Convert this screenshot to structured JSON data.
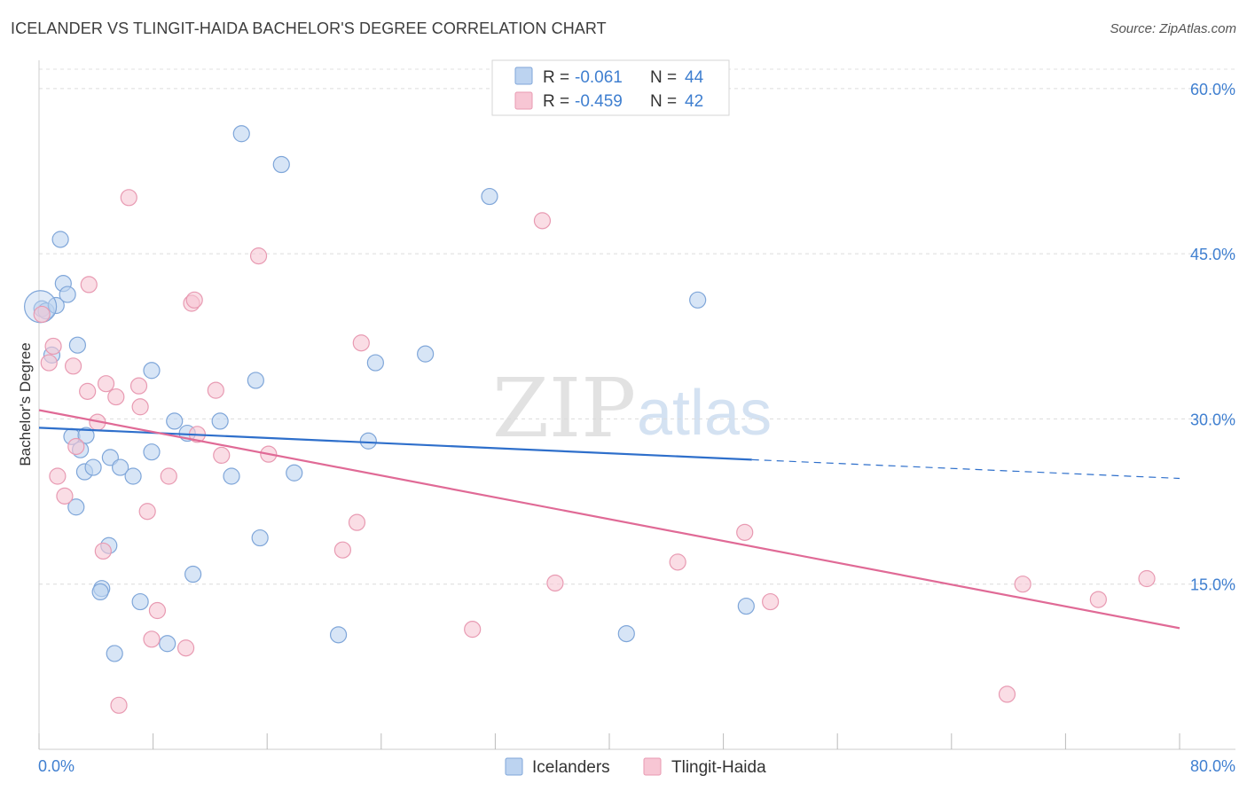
{
  "header": {
    "title": "ICELANDER VS TLINGIT-HAIDA BACHELOR'S DEGREE CORRELATION CHART",
    "source": "Source: ZipAtlas.com"
  },
  "watermark": {
    "part1": "ZIP",
    "part2": "atlas"
  },
  "legend_top": {
    "rows": [
      {
        "r_label": "R =",
        "r_value": "-0.061",
        "n_label": "N =",
        "n_value": "44"
      },
      {
        "r_label": "R =",
        "r_value": "-0.459",
        "n_label": "N =",
        "n_value": "42"
      }
    ]
  },
  "colors": {
    "icelanders_fill": "#bcd3f0",
    "icelanders_stroke": "#7fa6d9",
    "icelanders_line": "#2e6fcb",
    "tlingit_fill": "#f7c6d4",
    "tlingit_stroke": "#e89ab2",
    "tlingit_line": "#e06a96",
    "value_blue": "#3f7fd0"
  },
  "chart_data": {
    "type": "scatter",
    "title": "ICELANDER VS TLINGIT-HAIDA BACHELOR'S DEGREE CORRELATION CHART",
    "xlabel": "",
    "ylabel": "Bachelor's Degree",
    "xlim": [
      0,
      80
    ],
    "ylim": [
      0,
      62
    ],
    "x_tick_labels": [
      "0.0%",
      "80.0%"
    ],
    "y_ticks": [
      15,
      30,
      45,
      60
    ],
    "y_tick_labels": [
      "15.0%",
      "30.0%",
      "45.0%",
      "60.0%"
    ],
    "grid": true,
    "legend_position": "bottom",
    "series": [
      {
        "name": "Icelanders",
        "r": -0.061,
        "n": 44,
        "trend": {
          "x_start": 0,
          "y_start": 29.2,
          "x_solid_end": 50,
          "y_solid_end": 26.3,
          "x_end": 80,
          "y_end": 24.6
        },
        "points": [
          [
            0.2,
            40.0
          ],
          [
            0.5,
            39.8
          ],
          [
            1.2,
            40.3
          ],
          [
            0.9,
            35.8
          ],
          [
            1.5,
            46.3
          ],
          [
            1.7,
            42.3
          ],
          [
            2.0,
            41.3
          ],
          [
            2.7,
            36.7
          ],
          [
            2.3,
            28.4
          ],
          [
            2.9,
            27.2
          ],
          [
            3.3,
            28.5
          ],
          [
            3.2,
            25.2
          ],
          [
            3.8,
            25.6
          ],
          [
            2.6,
            22.0
          ],
          [
            5.0,
            26.5
          ],
          [
            5.7,
            25.6
          ],
          [
            6.6,
            24.8
          ],
          [
            7.9,
            34.4
          ],
          [
            7.9,
            27.0
          ],
          [
            9.5,
            29.8
          ],
          [
            10.4,
            28.7
          ],
          [
            12.7,
            29.8
          ],
          [
            13.5,
            24.8
          ],
          [
            14.2,
            55.9
          ],
          [
            15.2,
            33.5
          ],
          [
            15.5,
            19.2
          ],
          [
            17.0,
            53.1
          ],
          [
            17.9,
            25.1
          ],
          [
            4.9,
            18.5
          ],
          [
            4.4,
            14.6
          ],
          [
            4.3,
            14.3
          ],
          [
            7.1,
            13.4
          ],
          [
            10.8,
            15.9
          ],
          [
            9.0,
            9.6
          ],
          [
            5.3,
            8.7
          ],
          [
            21.0,
            10.4
          ],
          [
            23.1,
            28.0
          ],
          [
            23.6,
            35.1
          ],
          [
            27.1,
            35.9
          ],
          [
            31.6,
            50.2
          ],
          [
            46.2,
            40.8
          ],
          [
            41.2,
            10.5
          ],
          [
            49.6,
            13.0
          ],
          [
            0.1,
            40.2
          ]
        ]
      },
      {
        "name": "Tlingit-Haida",
        "r": -0.459,
        "n": 42,
        "trend": {
          "x_start": 0,
          "y_start": 30.8,
          "x_solid_end": 80,
          "y_solid_end": 11.0,
          "x_end": 80,
          "y_end": 11.0
        },
        "points": [
          [
            0.2,
            39.5
          ],
          [
            0.7,
            35.1
          ],
          [
            1.0,
            36.6
          ],
          [
            1.3,
            24.8
          ],
          [
            1.8,
            23.0
          ],
          [
            2.4,
            34.8
          ],
          [
            2.6,
            27.5
          ],
          [
            3.5,
            42.2
          ],
          [
            3.4,
            32.5
          ],
          [
            4.1,
            29.7
          ],
          [
            4.5,
            18.0
          ],
          [
            4.7,
            33.2
          ],
          [
            5.4,
            32.0
          ],
          [
            5.6,
            4.0
          ],
          [
            6.3,
            50.1
          ],
          [
            7.0,
            33.0
          ],
          [
            7.1,
            31.1
          ],
          [
            7.6,
            21.6
          ],
          [
            7.9,
            10.0
          ],
          [
            8.3,
            12.6
          ],
          [
            9.1,
            24.8
          ],
          [
            10.3,
            9.2
          ],
          [
            10.7,
            40.5
          ],
          [
            10.9,
            40.8
          ],
          [
            11.1,
            28.6
          ],
          [
            12.4,
            32.6
          ],
          [
            12.8,
            26.7
          ],
          [
            15.4,
            44.8
          ],
          [
            16.1,
            26.8
          ],
          [
            21.3,
            18.1
          ],
          [
            22.3,
            20.6
          ],
          [
            22.6,
            36.9
          ],
          [
            30.4,
            10.9
          ],
          [
            35.3,
            48.0
          ],
          [
            36.2,
            15.1
          ],
          [
            44.8,
            17.0
          ],
          [
            49.5,
            19.7
          ],
          [
            51.3,
            13.4
          ],
          [
            69.0,
            15.0
          ],
          [
            67.9,
            5.0
          ],
          [
            74.3,
            13.6
          ],
          [
            77.7,
            15.5
          ]
        ]
      }
    ]
  },
  "legend_bottom": {
    "items": [
      {
        "label": "Icelanders"
      },
      {
        "label": "Tlingit-Haida"
      }
    ]
  }
}
